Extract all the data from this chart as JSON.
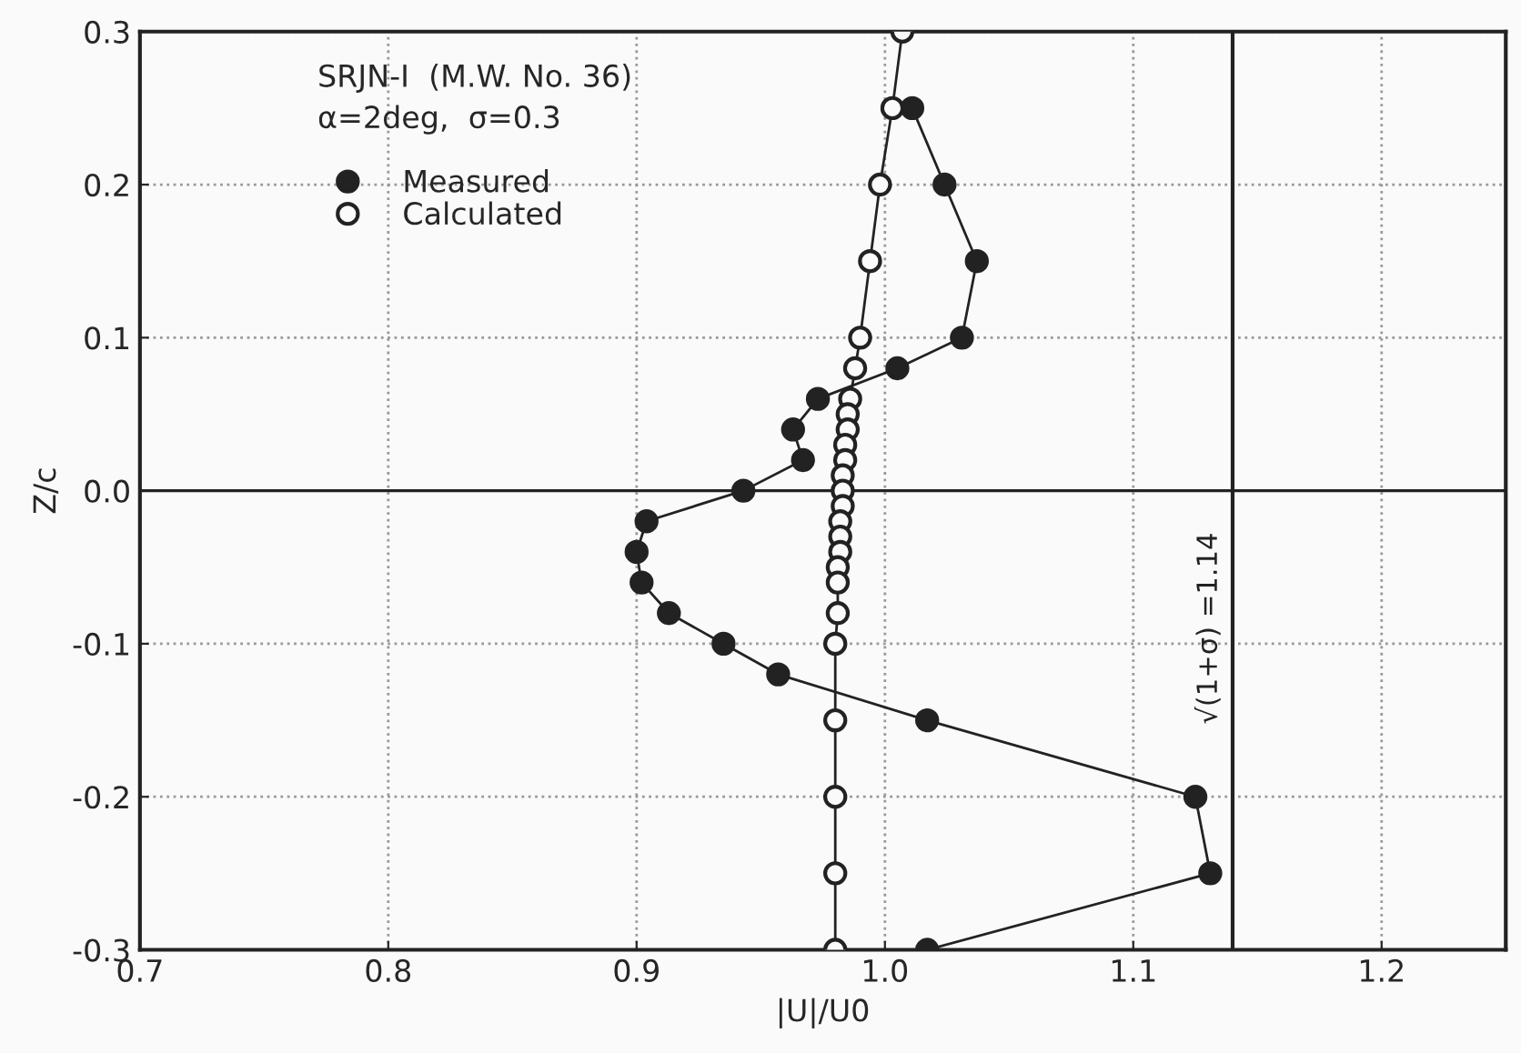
{
  "chart_data": {
    "type": "line",
    "xlabel": "|U|/U0",
    "ylabel": "Z/c",
    "annotations": [
      "SRJN-I  (M.W. No. 36)",
      "α=2deg,  σ=0.3"
    ],
    "series": [
      {
        "name": "Measured",
        "color": "#222222",
        "x": [
          1.011,
          1.024,
          1.037,
          1.031,
          1.005,
          0.973,
          0.963,
          0.967,
          0.943,
          0.904,
          0.9,
          0.902,
          0.913,
          0.935,
          0.957,
          1.017,
          1.125,
          1.131,
          1.017
        ],
        "values": [
          0.25,
          0.2,
          0.15,
          0.1,
          0.08,
          0.06,
          0.04,
          0.02,
          0.0,
          -0.02,
          -0.04,
          -0.06,
          -0.08,
          -0.1,
          -0.12,
          -0.15,
          -0.2,
          -0.25,
          -0.3
        ]
      },
      {
        "name": "Calculated",
        "color": "#222222",
        "x": [
          1.007,
          1.003,
          0.998,
          0.994,
          0.99,
          0.988,
          0.986,
          0.985,
          0.985,
          0.984,
          0.984,
          0.983,
          0.983,
          0.983,
          0.982,
          0.982,
          0.982,
          0.981,
          0.981,
          0.981,
          0.98,
          0.98,
          0.98,
          0.98,
          0.98
        ],
        "values": [
          0.3,
          0.25,
          0.2,
          0.15,
          0.1,
          0.08,
          0.06,
          0.05,
          0.04,
          0.03,
          0.02,
          0.01,
          0.0,
          -0.01,
          -0.02,
          -0.03,
          -0.04,
          -0.05,
          -0.06,
          -0.08,
          -0.1,
          -0.15,
          -0.2,
          -0.25,
          -0.3
        ]
      }
    ],
    "ref_lines": [
      {
        "axis": "x",
        "value": 1.14,
        "label": "√(1+σ) =1.14",
        "color": "#222222",
        "line_style": "solid"
      },
      {
        "axis": "y",
        "value": 0,
        "label": null,
        "color": "#222222",
        "line_style": "solid"
      }
    ],
    "xlim": [
      0.7,
      1.25
    ],
    "ylim": [
      -0.3,
      0.3
    ],
    "xticks": [
      0.7,
      0.8,
      0.9,
      {
        "value": 1.0,
        "label": "1.0"
      },
      1.1,
      1.2
    ],
    "yticks": [
      -0.3,
      -0.2,
      -0.1,
      {
        "value": 0,
        "label": "0.0"
      },
      0.1,
      0.2,
      0.3
    ],
    "grid": true,
    "legend": "top left",
    "marker": "circle",
    "line_style": "solid"
  }
}
